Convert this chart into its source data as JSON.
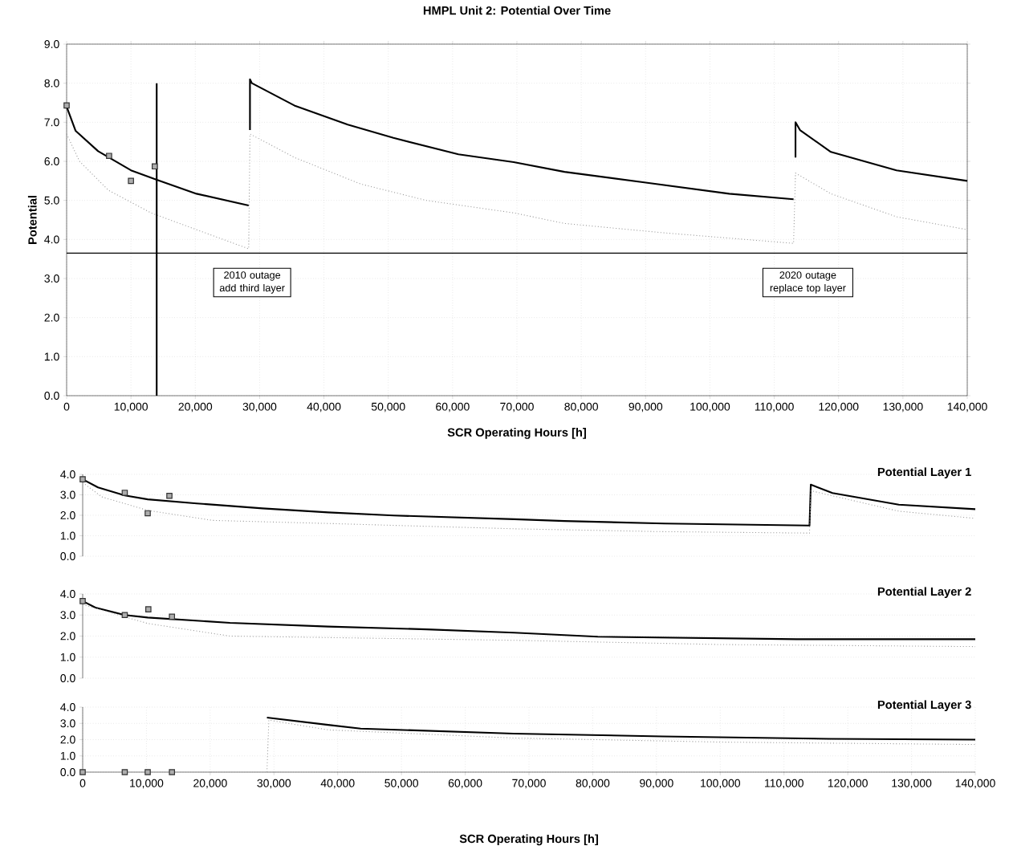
{
  "chart_data": [
    {
      "type": "line",
      "title": "HMPL Unit 2: Potential Over Time",
      "xlabel": "SCR Operating Hours [h]",
      "ylabel": "Potential",
      "grid": true,
      "xlim": [
        0,
        140000
      ],
      "ylim": [
        0,
        9
      ],
      "xticks": [
        0,
        {
          "value": 10000,
          "label": "10,000"
        },
        {
          "value": 20000,
          "label": "20,000"
        },
        {
          "value": 30000,
          "label": "30,000"
        },
        {
          "value": 40000,
          "label": "40,000"
        },
        {
          "value": 50000,
          "label": "50,000"
        },
        {
          "value": 60000,
          "label": "60,000"
        },
        {
          "value": 70000,
          "label": "70,000"
        },
        {
          "value": 80000,
          "label": "80,000"
        },
        {
          "value": 90000,
          "label": "90,000"
        },
        {
          "value": 100000,
          "label": "100,000"
        },
        {
          "value": 110000,
          "label": "110,000"
        },
        {
          "value": 120000,
          "label": "120,000"
        },
        {
          "value": 130000,
          "label": "130,000"
        },
        {
          "value": 140000,
          "label": "140,000"
        }
      ],
      "yticks": [
        {
          "value": 0,
          "label": "0.0"
        },
        {
          "value": 1,
          "label": "1.0"
        },
        {
          "value": 2,
          "label": "2.0"
        },
        {
          "value": 3,
          "label": "3.0"
        },
        {
          "value": 4,
          "label": "4.0"
        },
        {
          "value": 5,
          "label": "5.0"
        },
        {
          "value": 6,
          "label": "6.0"
        },
        {
          "value": 7,
          "label": "7.0"
        },
        {
          "value": 8,
          "label": "8.0"
        },
        {
          "value": 9,
          "label": "9.0"
        }
      ],
      "series": [
        {
          "type": "line",
          "color": "#000000",
          "line_style": "solid",
          "x": [
            0,
            1400,
            4900,
            10000,
            14100,
            20200,
            28300,
            28400,
            28500,
            28500,
            28800,
            35400,
            43700,
            50800,
            60900,
            69500,
            77400,
            89800,
            103000,
            113000,
            113200,
            113300,
            113300,
            114000,
            118800,
            129000,
            140000
          ],
          "values": [
            7.4,
            6.78,
            6.26,
            5.77,
            5.52,
            5.17,
            4.87,
            null,
            6.8,
            8.1,
            8.0,
            7.43,
            6.94,
            6.6,
            6.18,
            5.98,
            5.73,
            5.46,
            5.17,
            5.03,
            null,
            6.1,
            7.0,
            6.8,
            6.24,
            5.77,
            5.5
          ]
        },
        {
          "type": "line",
          "color": "#999999",
          "line_style": "dotted",
          "x": [
            0,
            2000,
            6500,
            13100,
            20200,
            28300,
            28500,
            35400,
            45700,
            55900,
            69500,
            77400,
            92800,
            113000,
            113300,
            118800,
            129000,
            140000
          ],
          "values": [
            6.7,
            6.0,
            5.26,
            4.68,
            4.25,
            3.76,
            6.7,
            6.1,
            5.42,
            5.0,
            4.68,
            4.41,
            4.17,
            3.9,
            5.7,
            5.17,
            4.58,
            4.25
          ]
        },
        {
          "type": "line",
          "color": "#000000",
          "line_style": "solid",
          "x": [
            14000,
            14000
          ],
          "values": [
            0,
            8.0
          ]
        },
        {
          "type": "scatter",
          "color": "#333333",
          "marker": "square",
          "x": [
            0,
            6600,
            10000,
            13700
          ],
          "values": [
            7.43,
            6.14,
            5.5,
            5.87
          ]
        }
      ],
      "ref_lines": [
        {
          "axis": "y",
          "value": 3.65,
          "color": "#000000"
        }
      ],
      "annotations": [
        "2010 outage add third layer",
        "2020 outage replace top layer"
      ]
    },
    {
      "type": "line",
      "title": "Potential Layer 1",
      "grid": true,
      "tick_labels": "y",
      "xlim": [
        0,
        140000
      ],
      "ylim": [
        0,
        4
      ],
      "yticks": [
        {
          "value": 0,
          "label": "0.0"
        },
        {
          "value": 1,
          "label": "1.0"
        },
        {
          "value": 2,
          "label": "2.0"
        },
        {
          "value": 3,
          "label": "3.0"
        },
        {
          "value": 4,
          "label": "4.0"
        }
      ],
      "series": [
        {
          "type": "line",
          "color": "#000000",
          "line_style": "solid",
          "x": [
            0,
            2400,
            6600,
            10200,
            17900,
            28200,
            38500,
            48800,
            67700,
            75600,
            91300,
            114000,
            114200,
            117600,
            128000,
            140000
          ],
          "values": [
            3.76,
            3.36,
            2.97,
            2.78,
            2.58,
            2.34,
            2.14,
            1.99,
            1.81,
            1.72,
            1.6,
            1.5,
            3.5,
            3.09,
            2.52,
            2.3
          ]
        },
        {
          "type": "line",
          "color": "#999999",
          "line_style": "dotted",
          "x": [
            0,
            3000,
            10200,
            20400,
            38500,
            67700,
            91000,
            114000,
            114200,
            128000,
            140000
          ],
          "values": [
            3.6,
            2.9,
            2.24,
            1.75,
            1.6,
            1.34,
            1.2,
            1.13,
            3.2,
            2.2,
            1.85
          ]
        },
        {
          "type": "scatter",
          "color": "#333333",
          "marker": "square",
          "x": [
            0,
            6600,
            10200,
            13600
          ],
          "values": [
            3.76,
            3.1,
            2.1,
            2.95
          ]
        }
      ]
    },
    {
      "type": "line",
      "title": "Potential Layer 2",
      "grid": true,
      "tick_labels": "y",
      "xlim": [
        0,
        140000
      ],
      "ylim": [
        0,
        4
      ],
      "yticks": [
        {
          "value": 0,
          "label": "0.0"
        },
        {
          "value": 1,
          "label": "1.0"
        },
        {
          "value": 2,
          "label": "2.0"
        },
        {
          "value": 3,
          "label": "3.0"
        },
        {
          "value": 4,
          "label": "4.0"
        }
      ],
      "series": [
        {
          "type": "line",
          "color": "#000000",
          "line_style": "solid",
          "x": [
            0,
            2000,
            6600,
            10200,
            23100,
            38500,
            54000,
            67700,
            80800,
            112000,
            140000
          ],
          "values": [
            3.66,
            3.35,
            3.0,
            2.88,
            2.63,
            2.45,
            2.32,
            2.16,
            1.97,
            1.85,
            1.85
          ]
        },
        {
          "type": "line",
          "color": "#999999",
          "line_style": "dotted",
          "x": [
            0,
            10200,
            23100,
            67700,
            100000,
            140000
          ],
          "values": [
            3.5,
            2.6,
            2.0,
            1.8,
            1.6,
            1.5
          ]
        },
        {
          "type": "scatter",
          "color": "#333333",
          "marker": "square",
          "x": [
            0,
            6600,
            10300,
            14000
          ],
          "values": [
            3.66,
            3.0,
            3.27,
            2.92
          ]
        }
      ]
    },
    {
      "type": "line",
      "title": "Potential Layer 3",
      "xlabel": "SCR Operating Hours [h]",
      "grid": true,
      "xlim": [
        0,
        140000
      ],
      "ylim": [
        0,
        4
      ],
      "xticks": [
        0,
        {
          "value": 10000,
          "label": "10,000"
        },
        {
          "value": 20000,
          "label": "20,000"
        },
        {
          "value": 30000,
          "label": "30,000"
        },
        {
          "value": 40000,
          "label": "40,000"
        },
        {
          "value": 50000,
          "label": "50,000"
        },
        {
          "value": 60000,
          "label": "60,000"
        },
        {
          "value": 70000,
          "label": "70,000"
        },
        {
          "value": 80000,
          "label": "80,000"
        },
        {
          "value": 90000,
          "label": "90,000"
        },
        {
          "value": 100000,
          "label": "100,000"
        },
        {
          "value": 110000,
          "label": "110,000"
        },
        {
          "value": 120000,
          "label": "120,000"
        },
        {
          "value": 130000,
          "label": "130,000"
        },
        {
          "value": 140000,
          "label": "140,000"
        }
      ],
      "yticks": [
        {
          "value": 0,
          "label": "0.0"
        },
        {
          "value": 1,
          "label": "1.0"
        },
        {
          "value": 2,
          "label": "2.0"
        },
        {
          "value": 3,
          "label": "3.0"
        },
        {
          "value": 4,
          "label": "4.0"
        }
      ],
      "series": [
        {
          "type": "line",
          "color": "#000000",
          "line_style": "solid",
          "x": [
            28900,
            38500,
            43600,
            67600,
            91000,
            117000,
            140000
          ],
          "values": [
            3.36,
            2.91,
            2.68,
            2.37,
            2.2,
            2.05,
            2.0
          ]
        },
        {
          "type": "line",
          "color": "#999999",
          "line_style": "dotted",
          "x": [
            28900,
            29200,
            38500,
            67600,
            100000,
            140000
          ],
          "values": [
            0,
            3.2,
            2.6,
            2.1,
            1.85,
            1.7
          ]
        },
        {
          "type": "scatter",
          "color": "#333333",
          "marker": "square",
          "x": [
            0,
            6600,
            10200,
            14000
          ],
          "values": [
            0,
            0,
            0,
            0
          ]
        }
      ]
    }
  ]
}
